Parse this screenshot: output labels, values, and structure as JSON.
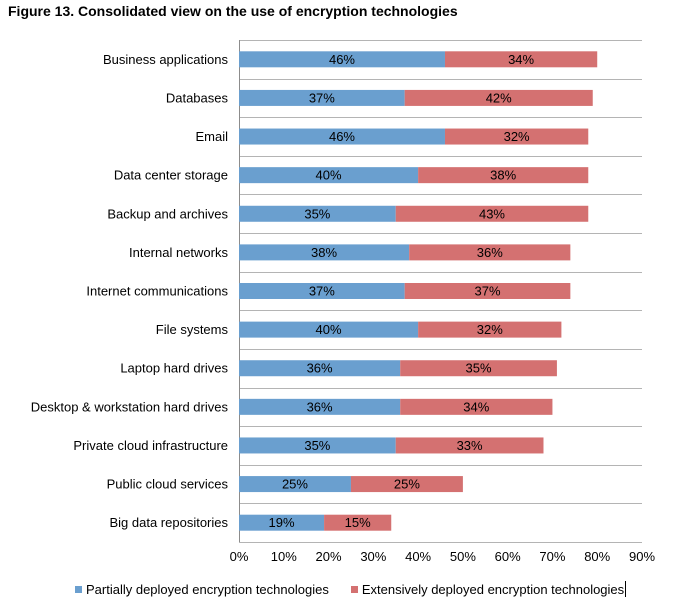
{
  "chart_data": {
    "type": "bar",
    "orientation": "horizontal",
    "stacked": true,
    "title": "Figure 13. Consolidated view on the use of encryption technologies",
    "categories": [
      "Business applications",
      "Databases",
      "Email",
      "Data center storage",
      "Backup and archives",
      "Internal networks",
      "Internet communications",
      "File systems",
      "Laptop hard drives",
      "Desktop & workstation hard drives",
      "Private cloud infrastructure",
      "Public cloud services",
      "Big data repositories"
    ],
    "series": [
      {
        "name": "Partially deployed encryption technologies",
        "color": "#6A9FCF",
        "values": [
          46,
          37,
          46,
          40,
          35,
          38,
          37,
          40,
          36,
          36,
          35,
          25,
          19
        ]
      },
      {
        "name": "Extensively deployed encryption technologies",
        "color": "#D47171",
        "values": [
          34,
          42,
          32,
          38,
          43,
          36,
          37,
          32,
          35,
          34,
          33,
          25,
          15
        ]
      }
    ],
    "xlim": [
      0,
      90
    ],
    "xticks": [
      "0%",
      "10%",
      "20%",
      "30%",
      "40%",
      "50%",
      "60%",
      "70%",
      "80%",
      "90%"
    ],
    "value_suffix": "%",
    "legend_position": "bottom",
    "grid": "horizontal separators"
  }
}
